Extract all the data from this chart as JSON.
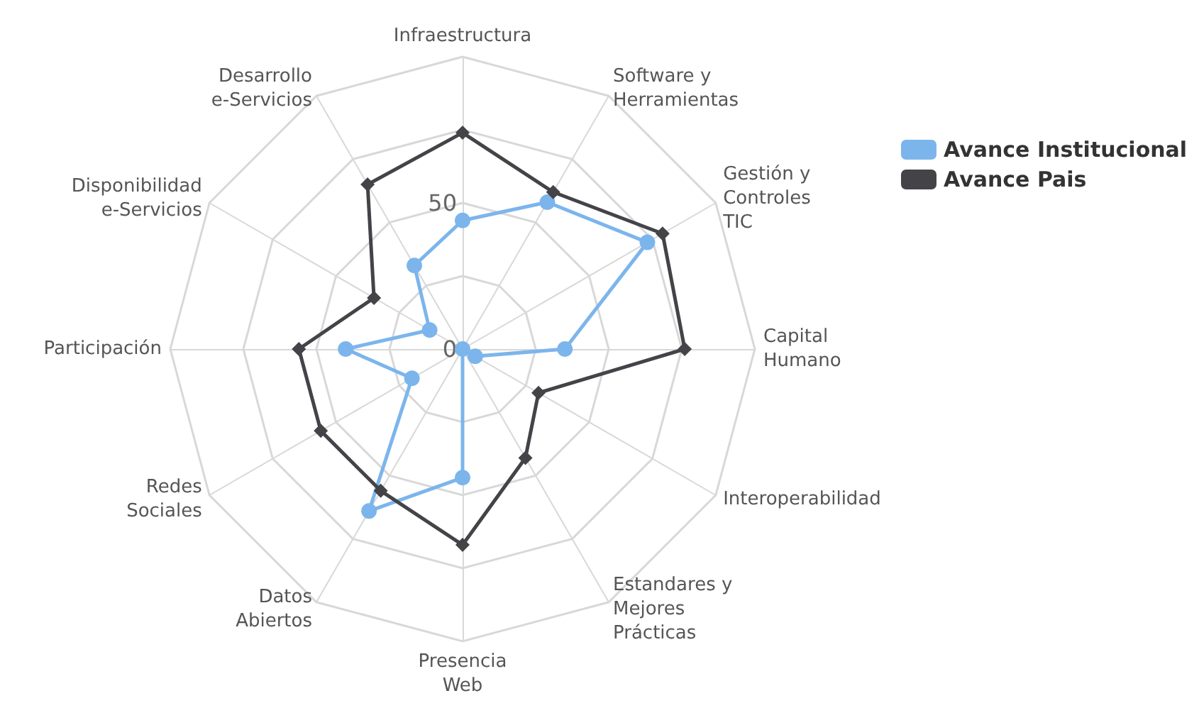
{
  "chart_data": {
    "type": "radar",
    "categories": [
      "Infraestructura",
      "Software y Herramientas",
      "Gestión y Controles TIC",
      "Capital Humano",
      "Interoperabilidad",
      "Estandares y Mejores Prácticas",
      "Presencia Web",
      "Datos Abiertos",
      "Redes Sociales",
      "Participación",
      "Disponibilidad e-Servicios",
      "Desarrollo e-Servicios"
    ],
    "series": [
      {
        "name": "Avance Institucional",
        "color": "#7cb5ec",
        "marker": "circle",
        "values": [
          44,
          58,
          73,
          35,
          5,
          0,
          44,
          64,
          20,
          40,
          13,
          33
        ]
      },
      {
        "name": "Avance Pais",
        "color": "#434348",
        "marker": "diamond",
        "values": [
          74,
          62,
          79,
          76,
          30,
          43,
          67,
          56,
          56,
          56,
          35,
          65
        ]
      }
    ],
    "ylim": [
      0,
      100
    ],
    "yticks": [
      0,
      50
    ],
    "grid": true,
    "legend": "top right"
  }
}
